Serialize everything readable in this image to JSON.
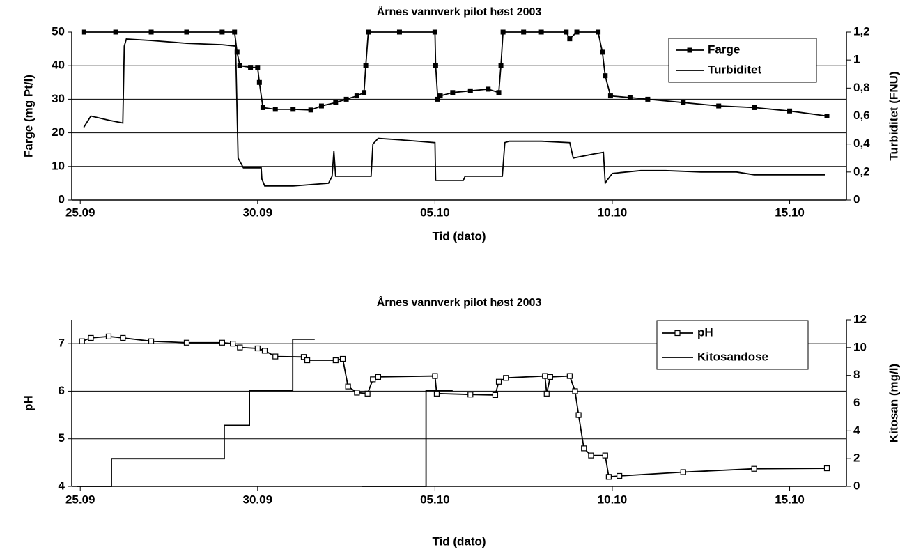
{
  "chart_data": [
    {
      "type": "line",
      "title": "Årnes vannverk pilot høst 2003",
      "xlabel": "Tid (dato)",
      "ylabel": "Farge (mg Pt/l)",
      "y2label": "Turbiditet (FNU)",
      "xlim": [
        -0.24,
        21.6
      ],
      "xticks": [
        {
          "value": 0,
          "label": "25.09"
        },
        {
          "value": 5,
          "label": "30.09"
        },
        {
          "value": 10,
          "label": "05.10"
        },
        {
          "value": 15,
          "label": "10.10"
        },
        {
          "value": 20,
          "label": "15.10"
        }
      ],
      "ylim": [
        0,
        50
      ],
      "yticks": [
        0,
        10,
        20,
        30,
        40,
        50
      ],
      "y2lim": [
        0,
        1.2
      ],
      "y2ticks": [
        0,
        {
          "value": 0.2,
          "label": "0,2"
        },
        {
          "value": 0.4,
          "label": "0,4"
        },
        {
          "value": 0.6,
          "label": "0,6"
        },
        {
          "value": 0.8,
          "label": "0,8"
        },
        1,
        {
          "value": 1.2,
          "label": "1,2"
        }
      ],
      "grid": true,
      "legend": "upper right",
      "series": [
        {
          "name": "Farge",
          "color": "#000000",
          "marker": "square",
          "x": [
            0.1,
            1,
            2,
            3,
            4,
            4.35,
            4.42,
            4.5,
            4.8,
            5.0,
            5.05,
            5.15,
            5.5,
            6,
            6.5,
            6.8,
            7.2,
            7.5,
            7.8,
            8.0,
            8.05,
            8.12,
            9,
            10.0,
            10.02,
            10.08,
            10.15,
            10.5,
            11,
            11.5,
            11.8,
            11.86,
            11.92,
            12.5,
            13,
            13.7,
            13.8,
            14.0,
            14.6,
            14.72,
            14.8,
            14.95,
            15.5,
            16,
            17,
            18,
            19,
            20,
            21.05
          ],
          "values": [
            50,
            50,
            50,
            50,
            50,
            50,
            44,
            40,
            39.5,
            39.5,
            35,
            27.5,
            27,
            27,
            26.8,
            28,
            29,
            30,
            31,
            32,
            40,
            50,
            50,
            50,
            40,
            30,
            31,
            32,
            32.5,
            33,
            32,
            40,
            50,
            50,
            50,
            50,
            48,
            50,
            50,
            44,
            37,
            31,
            30.5,
            30,
            29,
            28,
            27.5,
            26.5,
            25
          ]
        },
        {
          "name": "Turbiditet",
          "color": "#000000",
          "axis": "y2",
          "x": [
            0.1,
            0.3,
            0.8,
            1.2,
            1.24,
            1.3,
            2,
            3,
            4,
            4.38,
            4.45,
            4.6,
            5.1,
            5.12,
            5.2,
            6,
            7.0,
            7.1,
            7.15,
            7.2,
            8.2,
            8.25,
            8.4,
            9,
            10.0,
            10.02,
            10.1,
            10.8,
            10.85,
            11.9,
            11.97,
            12.1,
            13,
            13.8,
            13.9,
            14.5,
            14.75,
            14.8,
            14.85,
            15.0,
            15.8,
            16.5,
            17.5,
            18.5,
            19,
            21.0
          ],
          "values": [
            0.52,
            0.6,
            0.57,
            0.55,
            1.1,
            1.15,
            1.14,
            1.12,
            1.11,
            1.1,
            0.3,
            0.23,
            0.23,
            0.15,
            0.1,
            0.1,
            0.12,
            0.17,
            0.35,
            0.17,
            0.17,
            0.4,
            0.44,
            0.43,
            0.41,
            0.14,
            0.14,
            0.14,
            0.17,
            0.17,
            0.41,
            0.42,
            0.42,
            0.41,
            0.3,
            0.33,
            0.34,
            0.12,
            0.14,
            0.19,
            0.21,
            0.21,
            0.2,
            0.2,
            0.18,
            0.18
          ]
        }
      ]
    },
    {
      "type": "line",
      "title": "Årnes vannverk pilot høst 2003",
      "xlabel": "Tid (dato)",
      "ylabel": "pH",
      "y2label": "Kitosan (mg/l)",
      "xlim": [
        -0.24,
        21.6
      ],
      "xticks": [
        {
          "value": 0,
          "label": "25.09"
        },
        {
          "value": 5,
          "label": "30.09"
        },
        {
          "value": 10,
          "label": "05.10"
        },
        {
          "value": 15,
          "label": "10.10"
        },
        {
          "value": 20,
          "label": "15.10"
        }
      ],
      "ylim": [
        4,
        7.5
      ],
      "yticks": [
        4,
        5,
        6,
        7
      ],
      "y2lim": [
        0,
        12
      ],
      "y2ticks": [
        0,
        2,
        4,
        6,
        8,
        10,
        12
      ],
      "grid": true,
      "legend": "upper right",
      "series": [
        {
          "name": "pH",
          "color": "#000000",
          "marker": "square-open",
          "x": [
            0.05,
            0.3,
            0.8,
            1.2,
            2,
            3,
            4,
            4.3,
            4.5,
            5.0,
            5.2,
            5.5,
            6.3,
            6.4,
            7.2,
            7.4,
            7.55,
            7.8,
            8.1,
            8.25,
            8.4,
            10.0,
            10.05,
            11.0,
            11.7,
            11.8,
            12,
            13.1,
            13.15,
            13.25,
            13.8,
            13.95,
            14.05,
            14.2,
            14.4,
            14.8,
            14.9,
            15.2,
            17,
            19,
            21.05
          ],
          "values": [
            7.05,
            7.12,
            7.15,
            7.12,
            7.05,
            7.02,
            7.02,
            7.0,
            6.92,
            6.9,
            6.85,
            6.73,
            6.72,
            6.65,
            6.65,
            6.68,
            6.1,
            5.97,
            5.95,
            6.25,
            6.3,
            6.32,
            5.95,
            5.93,
            5.92,
            6.2,
            6.28,
            6.32,
            5.95,
            6.3,
            6.32,
            6.0,
            5.5,
            4.8,
            4.65,
            4.65,
            4.2,
            4.22,
            4.3,
            4.37,
            4.38
          ]
        },
        {
          "name": "Kitosandose",
          "color": "#000000",
          "axis": "y2",
          "x": [
            -0.1,
            0.88,
            0.88,
            4.06,
            4.06,
            4.77,
            4.77,
            5.99,
            5.99,
            6.61,
            6.61,
            7.95,
            9.75,
            9.75,
            10.5
          ],
          "values": [
            0,
            0,
            2,
            2,
            4.4,
            4.4,
            6.9,
            6.9,
            10.6,
            10.6,
            null,
            0,
            0,
            6.9,
            6.9
          ]
        }
      ]
    }
  ]
}
